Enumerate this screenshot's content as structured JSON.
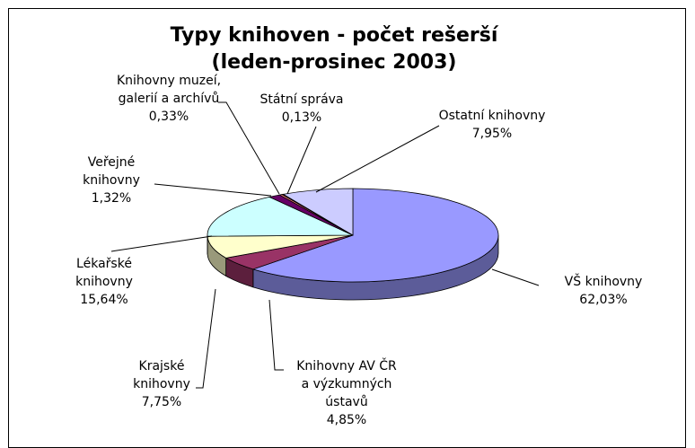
{
  "chart_data": {
    "type": "pie",
    "title": "Typy knihoven - počet rešerší\n(leden-prosinec 2003)",
    "categories": [
      "VŠ knihovny",
      "Knihovny AV ČR\na výzkumných\nústavů",
      "Krajské\nknihovny",
      "Lékařské\nknihovny",
      "Veřejné\nknihovny",
      "Knihovny muzeí,\ngalerií a archívů",
      "Státní správa",
      "Ostatní knihovny"
    ],
    "values": [
      62.03,
      4.85,
      7.75,
      15.64,
      1.32,
      0.33,
      0.13,
      7.95
    ],
    "value_labels": [
      "62,03%",
      "4,85%",
      "7,75%",
      "15,64%",
      "1,32%",
      "0,33%",
      "0,13%",
      "7,95%"
    ],
    "colors": [
      "#9999FF",
      "#993366",
      "#FFFFCC",
      "#CCFFFF",
      "#660066",
      "#FF8080",
      "#0066CC",
      "#CCCCFF"
    ]
  }
}
